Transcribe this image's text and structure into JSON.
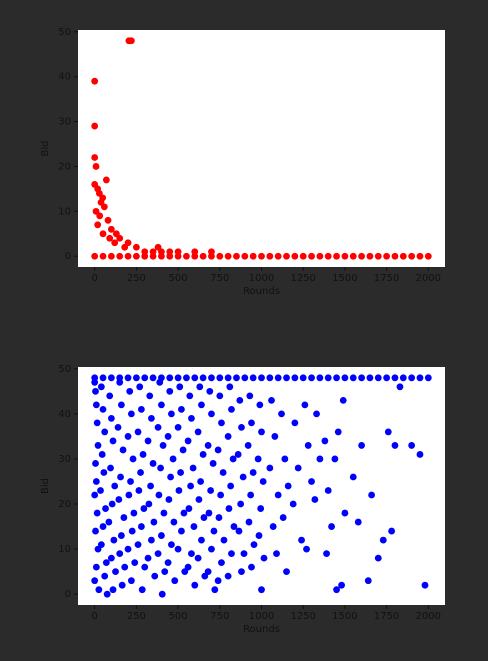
{
  "chart_data": [
    {
      "type": "scatter",
      "color": "#ff0000",
      "xlabel": "Rounds",
      "ylabel": "Bid",
      "xlim": [
        -100,
        2100
      ],
      "ylim": [
        -2.4,
        50.4
      ],
      "xticks": [
        0,
        250,
        500,
        750,
        1000,
        1250,
        1500,
        1750,
        2000
      ],
      "yticks": [
        0,
        10,
        20,
        30,
        40,
        50
      ],
      "x": [
        205,
        212,
        220,
        0,
        0,
        0,
        8,
        0,
        18,
        28,
        48,
        70,
        38,
        58,
        8,
        30,
        80,
        18,
        100,
        50,
        130,
        150,
        90,
        120,
        200,
        180,
        250,
        300,
        350,
        380,
        400,
        450,
        500,
        600,
        700,
        0,
        50,
        100,
        150,
        200,
        250,
        300,
        350,
        400,
        450,
        500,
        550,
        600,
        650,
        700,
        750,
        800,
        850,
        900,
        950,
        1000,
        1050,
        1100,
        1150,
        1200,
        1250,
        1300,
        1350,
        1400,
        1450,
        1500,
        1550,
        1600,
        1650,
        1700,
        1750,
        1800,
        1850,
        1900,
        1950,
        2000
      ],
      "values": [
        48,
        48,
        48,
        39,
        29,
        22,
        20,
        16,
        15,
        14,
        13,
        17,
        12,
        11,
        10,
        9,
        8,
        7,
        6,
        5,
        5,
        4,
        4,
        3,
        3,
        2,
        2,
        1,
        1,
        2,
        1,
        1,
        1,
        1,
        1,
        0,
        0,
        0,
        0,
        0,
        0,
        0,
        0,
        0,
        0,
        0,
        0,
        0,
        0,
        0,
        0,
        0,
        0,
        0,
        0,
        0,
        0,
        0,
        0,
        0,
        0,
        0,
        0,
        0,
        0,
        0,
        0,
        0,
        0,
        0,
        0,
        0,
        0,
        0,
        0,
        0
      ]
    },
    {
      "type": "scatter",
      "color": "#0000ff",
      "xlabel": "Rounds",
      "ylabel": "Bid",
      "xlim": [
        -100,
        2100
      ],
      "ylim": [
        -2.4,
        50.4
      ],
      "xticks": [
        0,
        250,
        500,
        750,
        1000,
        1250,
        1500,
        1750,
        2000
      ],
      "yticks": [
        0,
        10,
        20,
        30,
        40,
        50
      ],
      "x": [
        0,
        5,
        10,
        15,
        20,
        5,
        10,
        0,
        15,
        5,
        20,
        10,
        0,
        25,
        40,
        50,
        60,
        45,
        55,
        35,
        65,
        50,
        40,
        70,
        60,
        75,
        90,
        100,
        110,
        95,
        120,
        105,
        85,
        115,
        100,
        125,
        110,
        150,
        160,
        140,
        170,
        155,
        145,
        175,
        160,
        150,
        180,
        165,
        210,
        220,
        200,
        230,
        215,
        205,
        235,
        225,
        200,
        240,
        220,
        270,
        280,
        260,
        290,
        275,
        265,
        295,
        280,
        260,
        300,
        285,
        330,
        340,
        320,
        350,
        335,
        325,
        355,
        340,
        320,
        360,
        390,
        400,
        380,
        410,
        395,
        385,
        415,
        400,
        380,
        420,
        405,
        450,
        460,
        440,
        470,
        455,
        445,
        475,
        460,
        440,
        480,
        510,
        520,
        500,
        530,
        515,
        505,
        535,
        520,
        500,
        540,
        570,
        580,
        560,
        590,
        575,
        565,
        595,
        580,
        560,
        600,
        630,
        640,
        620,
        650,
        635,
        625,
        655,
        640,
        620,
        660,
        690,
        700,
        680,
        710,
        695,
        685,
        715,
        700,
        680,
        720,
        750,
        760,
        740,
        770,
        755,
        745,
        775,
        760,
        740,
        810,
        820,
        800,
        830,
        815,
        805,
        835,
        820,
        800,
        870,
        880,
        860,
        890,
        875,
        865,
        895,
        880,
        930,
        940,
        920,
        950,
        935,
        925,
        955,
        940,
        990,
        1000,
        980,
        1010,
        995,
        985,
        1015,
        1000,
        1060,
        1080,
        1050,
        1100,
        1070,
        1090,
        1120,
        1140,
        1160,
        1130,
        1150,
        1200,
        1220,
        1190,
        1240,
        1260,
        1280,
        1300,
        1270,
        1330,
        1350,
        1320,
        1380,
        1400,
        1420,
        1390,
        1440,
        1460,
        1480,
        1490,
        1500,
        1450,
        1550,
        1580,
        1600,
        1640,
        1660,
        1700,
        1730,
        1760,
        1780,
        1800,
        1830,
        1900,
        1950,
        1980,
        0,
        50,
        100,
        150,
        200,
        250,
        300,
        350,
        400,
        450,
        500,
        550,
        600,
        650,
        700,
        750,
        800,
        850,
        900,
        950,
        1000,
        1050,
        1100,
        1150,
        1200,
        1250,
        1300,
        1350,
        1400,
        1450,
        1500,
        1550,
        1600,
        1650,
        1700,
        1750,
        1800,
        1850,
        1900,
        1950,
        2000
      ],
      "values": [
        47,
        45,
        42,
        38,
        33,
        29,
        25,
        22,
        18,
        14,
        10,
        6,
        3,
        1,
        46,
        41,
        36,
        31,
        27,
        23,
        19,
        15,
        11,
        7,
        4,
        0,
        44,
        39,
        34,
        28,
        24,
        20,
        16,
        12,
        8,
        5,
        1,
        47,
        42,
        37,
        32,
        26,
        21,
        17,
        13,
        9,
        6,
        2,
        45,
        40,
        35,
        30,
        25,
        22,
        18,
        14,
        10,
        7,
        3,
        46,
        41,
        36,
        31,
        27,
        23,
        19,
        15,
        11,
        6,
        1,
        44,
        39,
        34,
        29,
        24,
        20,
        16,
        12,
        8,
        4,
        47,
        42,
        37,
        33,
        28,
        22,
        18,
        13,
        9,
        5,
        0,
        45,
        40,
        35,
        30,
        26,
        21,
        16,
        11,
        7,
        3,
        46,
        41,
        37,
        32,
        27,
        23,
        18,
        14,
        10,
        5,
        44,
        39,
        34,
        28,
        24,
        19,
        15,
        9,
        6,
        2,
        46,
        42,
        36,
        31,
        25,
        21,
        17,
        12,
        8,
        4,
        45,
        40,
        33,
        29,
        23,
        18,
        14,
        10,
        5,
        1,
        44,
        38,
        32,
        27,
        22,
        17,
        12,
        7,
        3,
        46,
        41,
        35,
        30,
        24,
        19,
        15,
        9,
        4,
        43,
        37,
        31,
        26,
        20,
        14,
        9,
        5,
        44,
        38,
        33,
        27,
        22,
        16,
        11,
        6,
        42,
        36,
        30,
        25,
        19,
        13,
        8,
        1,
        43,
        35,
        28,
        22,
        15,
        9,
        40,
        30,
        24,
        17,
        5,
        38,
        28,
        20,
        12,
        42,
        33,
        25,
        10,
        40,
        30,
        21,
        34,
        23,
        15,
        9,
        30,
        36,
        2,
        43,
        18,
        1,
        26,
        16,
        33,
        3,
        22,
        8,
        12,
        36,
        14,
        33,
        46,
        33,
        31,
        2,
        48,
        48,
        48,
        48,
        48,
        48,
        48,
        48,
        48,
        48,
        48,
        48,
        48,
        48,
        48,
        48,
        48,
        48,
        48,
        48,
        48,
        48,
        48,
        48,
        48,
        48,
        48,
        48,
        48,
        48,
        48,
        48,
        48,
        48,
        48,
        48,
        48,
        48,
        48,
        48,
        48
      ]
    }
  ]
}
